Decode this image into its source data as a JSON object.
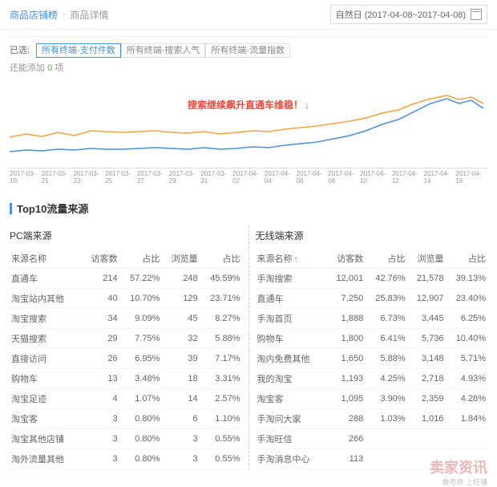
{
  "breadcrumb": {
    "link": "商品店铺榜",
    "current": "商品详情"
  },
  "date_range": "自然日 (2017-04-08~2017-04-08)",
  "filters": {
    "selected_label": "已选:",
    "tags": [
      {
        "label": "所有终端-支付件数",
        "selected": true
      },
      {
        "label": "所有终端-搜索人气",
        "selected": false
      },
      {
        "label": "所有终端-流量指数",
        "selected": false
      }
    ],
    "sub_label": "还能添加",
    "sub_count": "0",
    "sub_suffix": "项"
  },
  "chart": {
    "annotation": "搜索继续飙升直通车维稳！",
    "series": [
      {
        "color": "#f2a33c",
        "points": [
          [
            0,
            62
          ],
          [
            20,
            58
          ],
          [
            40,
            61
          ],
          [
            60,
            56
          ],
          [
            80,
            60
          ],
          [
            100,
            54
          ],
          [
            120,
            55
          ],
          [
            140,
            56
          ],
          [
            160,
            55
          ],
          [
            180,
            54
          ],
          [
            200,
            56
          ],
          [
            220,
            57
          ],
          [
            240,
            55
          ],
          [
            260,
            58
          ],
          [
            280,
            56
          ],
          [
            300,
            54
          ],
          [
            320,
            55
          ],
          [
            340,
            52
          ],
          [
            360,
            50
          ],
          [
            380,
            48
          ],
          [
            400,
            45
          ],
          [
            420,
            42
          ],
          [
            440,
            38
          ],
          [
            460,
            32
          ],
          [
            480,
            28
          ],
          [
            500,
            20
          ],
          [
            520,
            14
          ],
          [
            540,
            10
          ],
          [
            555,
            15
          ],
          [
            570,
            12
          ],
          [
            585,
            20
          ]
        ]
      },
      {
        "color": "#4a90d9",
        "points": [
          [
            0,
            80
          ],
          [
            20,
            78
          ],
          [
            40,
            79
          ],
          [
            60,
            77
          ],
          [
            80,
            78
          ],
          [
            100,
            76
          ],
          [
            120,
            77
          ],
          [
            140,
            77
          ],
          [
            160,
            76
          ],
          [
            180,
            75
          ],
          [
            200,
            76
          ],
          [
            220,
            77
          ],
          [
            240,
            75
          ],
          [
            260,
            77
          ],
          [
            280,
            76
          ],
          [
            300,
            74
          ],
          [
            320,
            75
          ],
          [
            340,
            72
          ],
          [
            360,
            70
          ],
          [
            380,
            68
          ],
          [
            400,
            64
          ],
          [
            420,
            60
          ],
          [
            440,
            54
          ],
          [
            460,
            46
          ],
          [
            480,
            40
          ],
          [
            500,
            30
          ],
          [
            520,
            20
          ],
          [
            540,
            14
          ],
          [
            555,
            20
          ],
          [
            570,
            16
          ],
          [
            585,
            26
          ]
        ]
      }
    ],
    "x_labels": [
      "2017-03-19",
      "2017-03-21",
      "2017-03-23",
      "2017-03-25",
      "2017-03-27",
      "2017-03-29",
      "2017-03-31",
      "2017-04-02",
      "2017-04-04",
      "2017-04-06",
      "2017-04-08",
      "2017-04-10",
      "2017-04-12",
      "2017-04-14",
      "2017-04-16"
    ]
  },
  "section_title": "Top10流量来源",
  "tables": {
    "columns": [
      "来源名称",
      "访客数",
      "占比",
      "浏览量",
      "占比"
    ],
    "left": {
      "title": "PC端来源",
      "rows": [
        [
          "直通车",
          "214",
          "57.22%",
          "248",
          "45.59%"
        ],
        [
          "淘宝站内其他",
          "40",
          "10.70%",
          "129",
          "23.71%"
        ],
        [
          "淘宝搜索",
          "34",
          "9.09%",
          "45",
          "8.27%"
        ],
        [
          "天猫搜索",
          "29",
          "7.75%",
          "32",
          "5.88%"
        ],
        [
          "直接访问",
          "26",
          "6.95%",
          "39",
          "7.17%"
        ],
        [
          "购物车",
          "13",
          "3.48%",
          "18",
          "3.31%"
        ],
        [
          "淘宝足迹",
          "4",
          "1.07%",
          "14",
          "2.57%"
        ],
        [
          "淘宝客",
          "3",
          "0.80%",
          "6",
          "1.10%"
        ],
        [
          "淘宝其他店铺",
          "3",
          "0.80%",
          "3",
          "0.55%"
        ],
        [
          "淘外流量其他",
          "3",
          "0.80%",
          "3",
          "0.55%"
        ]
      ]
    },
    "right": {
      "title": "无线端来源",
      "rows": [
        [
          "手淘搜索",
          "12,001",
          "42.76%",
          "21,578",
          "39.13%"
        ],
        [
          "直通车",
          "7,250",
          "25.83%",
          "12,907",
          "23.40%"
        ],
        [
          "手淘首页",
          "1,888",
          "6.73%",
          "3,445",
          "6.25%"
        ],
        [
          "购物车",
          "1,800",
          "6.41%",
          "5,736",
          "10.40%"
        ],
        [
          "淘内免费其他",
          "1,650",
          "5.88%",
          "3,148",
          "5.71%"
        ],
        [
          "我的淘宝",
          "1,193",
          "4.25%",
          "2,718",
          "4.93%"
        ],
        [
          "淘宝客",
          "1,095",
          "3.90%",
          "2,359",
          "4.28%"
        ],
        [
          "手淘问大家",
          "288",
          "1.03%",
          "1,016",
          "1.84%"
        ],
        [
          "手淘旺信",
          "266",
          "",
          "",
          ""
        ],
        [
          "手淘消息中心",
          "113",
          "",
          "",
          ""
        ]
      ]
    }
  },
  "watermark": "卖家资讯",
  "watermark_sub": "做电商 上旺铺"
}
